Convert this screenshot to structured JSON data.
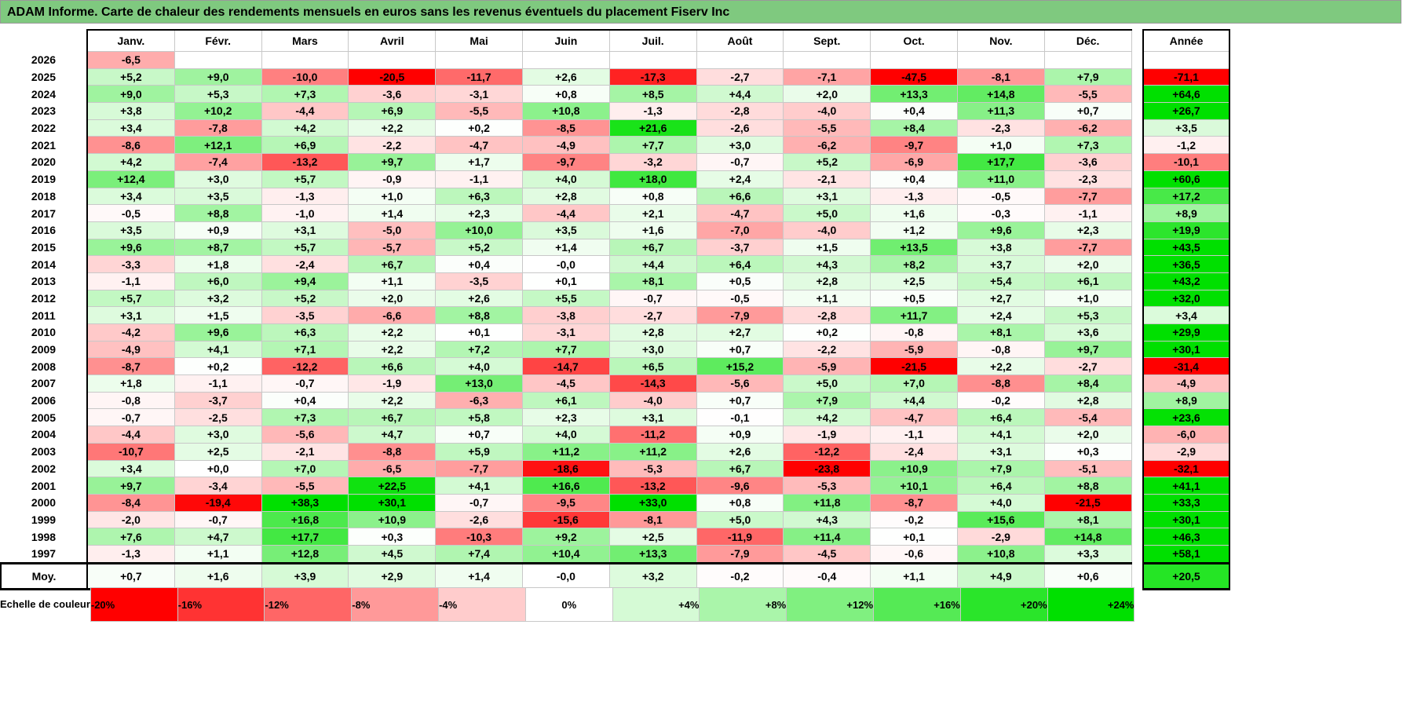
{
  "title": "ADAM Informe. Carte de chaleur des rendements mensuels en euros sans les revenus éventuels du placement Fiserv Inc",
  "chart_data": {
    "type": "heatmap",
    "title": "ADAM Informe. Carte de chaleur des rendements mensuels en euros sans les revenus éventuels du placement Fiserv Inc",
    "columns": [
      "Janv.",
      "Févr.",
      "Mars",
      "Avril",
      "Mai",
      "Juin",
      "Juil.",
      "Août",
      "Sept.",
      "Oct.",
      "Nov.",
      "Déc."
    ],
    "annual_header": "Année",
    "rows": [
      {
        "year": "2026",
        "values": [
          "-6,5",
          "",
          "",
          "",
          "",
          "",
          "",
          "",
          "",
          "",
          "",
          ""
        ],
        "annual": ""
      },
      {
        "year": "2025",
        "values": [
          "+5,2",
          "+9,0",
          "-10,0",
          "-20,5",
          "-11,7",
          "+2,6",
          "-17,3",
          "-2,7",
          "-7,1",
          "-47,5",
          "-8,1",
          "+7,9"
        ],
        "annual": "-71,1"
      },
      {
        "year": "2024",
        "values": [
          "+9,0",
          "+5,3",
          "+7,3",
          "-3,6",
          "-3,1",
          "+0,8",
          "+8,5",
          "+4,4",
          "+2,0",
          "+13,3",
          "+14,8",
          "-5,5"
        ],
        "annual": "+64,6"
      },
      {
        "year": "2023",
        "values": [
          "+3,8",
          "+10,2",
          "-4,4",
          "+6,9",
          "-5,5",
          "+10,8",
          "-1,3",
          "-2,8",
          "-4,0",
          "+0,4",
          "+11,3",
          "+0,7"
        ],
        "annual": "+26,7"
      },
      {
        "year": "2022",
        "values": [
          "+3,4",
          "-7,8",
          "+4,2",
          "+2,2",
          "+0,2",
          "-8,5",
          "+21,6",
          "-2,6",
          "-5,5",
          "+8,4",
          "-2,3",
          "-6,2"
        ],
        "annual": "+3,5"
      },
      {
        "year": "2021",
        "values": [
          "-8,6",
          "+12,1",
          "+6,9",
          "-2,2",
          "-4,7",
          "-4,9",
          "+7,7",
          "+3,0",
          "-6,2",
          "-9,7",
          "+1,0",
          "+7,3"
        ],
        "annual": "-1,2"
      },
      {
        "year": "2020",
        "values": [
          "+4,2",
          "-7,4",
          "-13,2",
          "+9,7",
          "+1,7",
          "-9,7",
          "-3,2",
          "-0,7",
          "+5,2",
          "-6,9",
          "+17,7",
          "-3,6"
        ],
        "annual": "-10,1"
      },
      {
        "year": "2019",
        "values": [
          "+12,4",
          "+3,0",
          "+5,7",
          "-0,9",
          "-1,1",
          "+4,0",
          "+18,0",
          "+2,4",
          "-2,1",
          "+0,4",
          "+11,0",
          "-2,3"
        ],
        "annual": "+60,6"
      },
      {
        "year": "2018",
        "values": [
          "+3,4",
          "+3,5",
          "-1,3",
          "+1,0",
          "+6,3",
          "+2,8",
          "+0,8",
          "+6,6",
          "+3,1",
          "-1,3",
          "-0,5",
          "-7,7"
        ],
        "annual": "+17,2"
      },
      {
        "year": "2017",
        "values": [
          "-0,5",
          "+8,8",
          "-1,0",
          "+1,4",
          "+2,3",
          "-4,4",
          "+2,1",
          "-4,7",
          "+5,0",
          "+1,6",
          "-0,3",
          "-1,1"
        ],
        "annual": "+8,9"
      },
      {
        "year": "2016",
        "values": [
          "+3,5",
          "+0,9",
          "+3,1",
          "-5,0",
          "+10,0",
          "+3,5",
          "+1,6",
          "-7,0",
          "-4,0",
          "+1,2",
          "+9,6",
          "+2,3"
        ],
        "annual": "+19,9"
      },
      {
        "year": "2015",
        "values": [
          "+9,6",
          "+8,7",
          "+5,7",
          "-5,7",
          "+5,2",
          "+1,4",
          "+6,7",
          "-3,7",
          "+1,5",
          "+13,5",
          "+3,8",
          "-7,7"
        ],
        "annual": "+43,5"
      },
      {
        "year": "2014",
        "values": [
          "-3,3",
          "+1,8",
          "-2,4",
          "+6,7",
          "+0,4",
          "-0,0",
          "+4,4",
          "+6,4",
          "+4,3",
          "+8,2",
          "+3,7",
          "+2,0"
        ],
        "annual": "+36,5"
      },
      {
        "year": "2013",
        "values": [
          "-1,1",
          "+6,0",
          "+9,4",
          "+1,1",
          "-3,5",
          "+0,1",
          "+8,1",
          "+0,5",
          "+2,8",
          "+2,5",
          "+5,4",
          "+6,1"
        ],
        "annual": "+43,2"
      },
      {
        "year": "2012",
        "values": [
          "+5,7",
          "+3,2",
          "+5,2",
          "+2,0",
          "+2,6",
          "+5,5",
          "-0,7",
          "-0,5",
          "+1,1",
          "+0,5",
          "+2,7",
          "+1,0"
        ],
        "annual": "+32,0"
      },
      {
        "year": "2011",
        "values": [
          "+3,1",
          "+1,5",
          "-3,5",
          "-6,6",
          "+8,8",
          "-3,8",
          "-2,7",
          "-7,9",
          "-2,8",
          "+11,7",
          "+2,4",
          "+5,3"
        ],
        "annual": "+3,4"
      },
      {
        "year": "2010",
        "values": [
          "-4,2",
          "+9,6",
          "+6,3",
          "+2,2",
          "+0,1",
          "-3,1",
          "+2,8",
          "+2,7",
          "+0,2",
          "-0,8",
          "+8,1",
          "+3,6"
        ],
        "annual": "+29,9"
      },
      {
        "year": "2009",
        "values": [
          "-4,9",
          "+4,1",
          "+7,1",
          "+2,2",
          "+7,2",
          "+7,7",
          "+3,0",
          "+0,7",
          "-2,2",
          "-5,9",
          "-0,8",
          "+9,7"
        ],
        "annual": "+30,1"
      },
      {
        "year": "2008",
        "values": [
          "-8,7",
          "+0,2",
          "-12,2",
          "+6,6",
          "+4,0",
          "-14,7",
          "+6,5",
          "+15,2",
          "-5,9",
          "-21,5",
          "+2,2",
          "-2,7"
        ],
        "annual": "-31,4"
      },
      {
        "year": "2007",
        "values": [
          "+1,8",
          "-1,1",
          "-0,7",
          "-1,9",
          "+13,0",
          "-4,5",
          "-14,3",
          "-5,6",
          "+5,0",
          "+7,0",
          "-8,8",
          "+8,4"
        ],
        "annual": "-4,9"
      },
      {
        "year": "2006",
        "values": [
          "-0,8",
          "-3,7",
          "+0,4",
          "+2,2",
          "-6,3",
          "+6,1",
          "-4,0",
          "+0,7",
          "+7,9",
          "+4,4",
          "-0,2",
          "+2,8"
        ],
        "annual": "+8,9"
      },
      {
        "year": "2005",
        "values": [
          "-0,7",
          "-2,5",
          "+7,3",
          "+6,7",
          "+5,8",
          "+2,3",
          "+3,1",
          "-0,1",
          "+4,2",
          "-4,7",
          "+6,4",
          "-5,4"
        ],
        "annual": "+23,6"
      },
      {
        "year": "2004",
        "values": [
          "-4,4",
          "+3,0",
          "-5,6",
          "+4,7",
          "+0,7",
          "+4,0",
          "-11,2",
          "+0,9",
          "-1,9",
          "-1,1",
          "+4,1",
          "+2,0"
        ],
        "annual": "-6,0"
      },
      {
        "year": "2003",
        "values": [
          "-10,7",
          "+2,5",
          "-2,1",
          "-8,8",
          "+5,9",
          "+11,2",
          "+11,2",
          "+2,6",
          "-12,2",
          "-2,4",
          "+3,1",
          "+0,3"
        ],
        "annual": "-2,9"
      },
      {
        "year": "2002",
        "values": [
          "+3,4",
          "+0,0",
          "+7,0",
          "-6,5",
          "-7,7",
          "-18,6",
          "-5,3",
          "+6,7",
          "-23,8",
          "+10,9",
          "+7,9",
          "-5,1"
        ],
        "annual": "-32,1"
      },
      {
        "year": "2001",
        "values": [
          "+9,7",
          "-3,4",
          "-5,5",
          "+22,5",
          "+4,1",
          "+16,6",
          "-13,2",
          "-9,6",
          "-5,3",
          "+10,1",
          "+6,4",
          "+8,8"
        ],
        "annual": "+41,1"
      },
      {
        "year": "2000",
        "values": [
          "-8,4",
          "-19,4",
          "+38,3",
          "+30,1",
          "-0,7",
          "-9,5",
          "+33,0",
          "+0,8",
          "+11,8",
          "-8,7",
          "+4,0",
          "-21,5"
        ],
        "annual": "+33,3"
      },
      {
        "year": "1999",
        "values": [
          "-2,0",
          "-0,7",
          "+16,8",
          "+10,9",
          "-2,6",
          "-15,6",
          "-8,1",
          "+5,0",
          "+4,3",
          "-0,2",
          "+15,6",
          "+8,1"
        ],
        "annual": "+30,1"
      },
      {
        "year": "1998",
        "values": [
          "+7,6",
          "+4,7",
          "+17,7",
          "+0,3",
          "-10,3",
          "+9,2",
          "+2,5",
          "-11,9",
          "+11,4",
          "+0,1",
          "-2,9",
          "+14,8"
        ],
        "annual": "+46,3"
      },
      {
        "year": "1997",
        "values": [
          "-1,3",
          "+1,1",
          "+12,8",
          "+4,5",
          "+7,4",
          "+10,4",
          "+13,3",
          "-7,9",
          "-4,5",
          "-0,6",
          "+10,8",
          "+3,3"
        ],
        "annual": "+58,1"
      }
    ],
    "average": {
      "label": "Moy.",
      "values": [
        "+0,7",
        "+1,6",
        "+3,9",
        "+2,9",
        "+1,4",
        "-0,0",
        "+3,2",
        "-0,2",
        "-0,4",
        "+1,1",
        "+4,9",
        "+0,6"
      ],
      "annual": "+20,5"
    },
    "color_scale": {
      "label": "Echelle de couleur",
      "stops": [
        "-20%",
        "-16%",
        "-12%",
        "-8%",
        "-4%",
        "0%",
        "+4%",
        "+8%",
        "+12%",
        "+16%",
        "+20%",
        "+24%"
      ],
      "min_color": "#ff0000",
      "mid_color": "#ffffff",
      "max_color": "#00e000"
    }
  }
}
